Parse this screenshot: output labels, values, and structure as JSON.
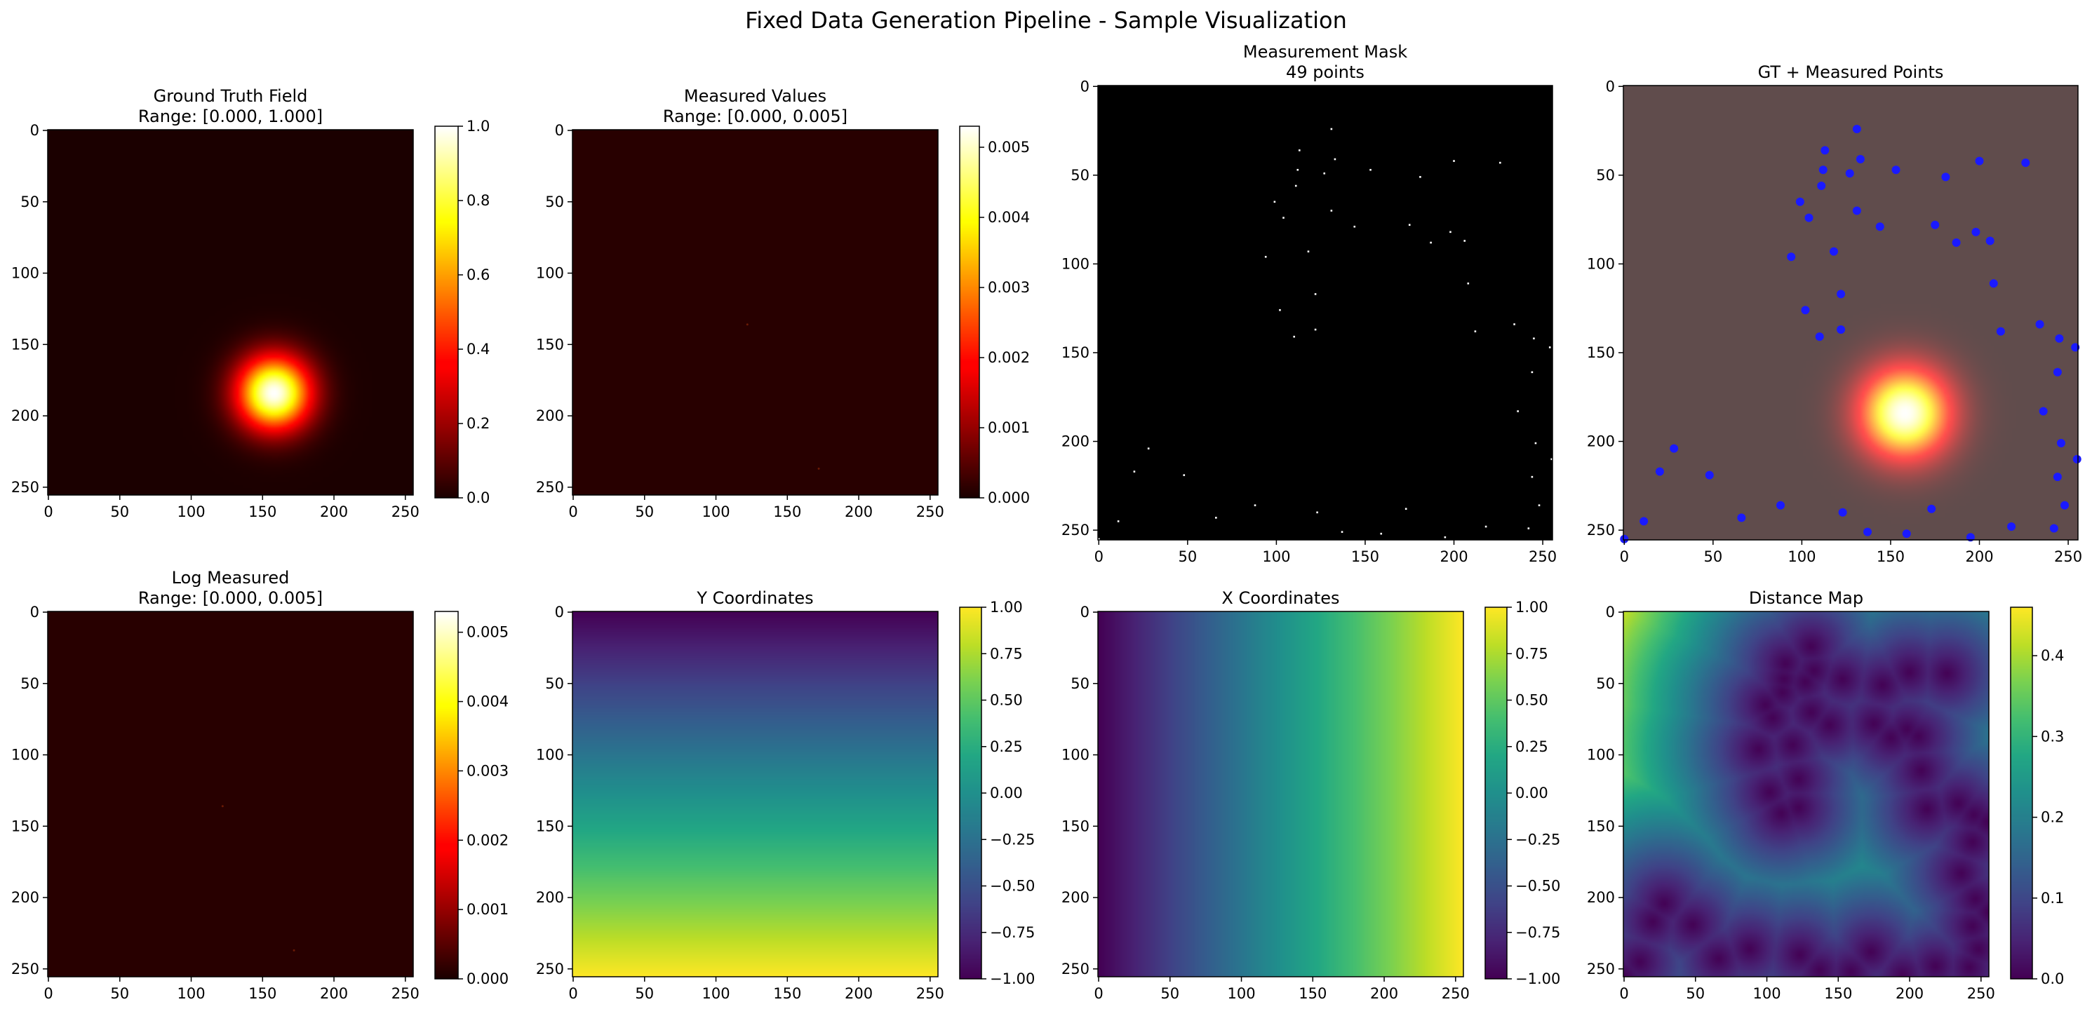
{
  "figure": {
    "title": "Fixed Data Generation Pipeline - Sample Visualization"
  },
  "chart_data": [
    {
      "type": "heatmap",
      "id": "gt",
      "title_lines": [
        "Ground Truth Field",
        "Range: [0.000, 1.000]"
      ],
      "colormap": "hot",
      "image_extent": [
        0,
        255
      ],
      "xticks": [
        0,
        50,
        100,
        150,
        200,
        250
      ],
      "yticks": [
        0,
        50,
        100,
        150,
        200,
        250
      ],
      "field": {
        "kind": "gaussian",
        "center": [
          158,
          184
        ],
        "sigma": 18,
        "amplitude": 1.0
      },
      "colorbar": {
        "range": [
          0,
          1.0
        ],
        "ticks": [
          "0.0",
          "0.2",
          "0.4",
          "0.6",
          "0.8",
          "1.0"
        ],
        "values": [
          0,
          0.2,
          0.4,
          0.6,
          0.8,
          1.0
        ]
      }
    },
    {
      "type": "heatmap",
      "id": "meas",
      "title_lines": [
        "Measured Values",
        "Range: [0.000, 0.005]"
      ],
      "colormap": "hot",
      "image_extent": [
        0,
        255
      ],
      "xticks": [
        0,
        50,
        100,
        150,
        200,
        250
      ],
      "yticks": [
        0,
        50,
        100,
        150,
        200,
        250
      ],
      "field": {
        "kind": "points",
        "background": 0.0,
        "points": [
          [
            122,
            136,
            0.0001
          ],
          [
            172,
            237,
            0.0001
          ]
        ]
      },
      "colorbar": {
        "range": [
          0,
          0.0053
        ],
        "ticks": [
          "0.000",
          "0.001",
          "0.002",
          "0.003",
          "0.004",
          "0.005"
        ],
        "values": [
          0,
          0.001,
          0.002,
          0.003,
          0.004,
          0.005
        ]
      }
    },
    {
      "type": "heatmap",
      "id": "mask",
      "title_lines": [
        "Measurement Mask",
        "49 points"
      ],
      "colormap": "gray",
      "image_extent": [
        0,
        255
      ],
      "xticks": [
        0,
        50,
        100,
        150,
        200,
        250
      ],
      "yticks": [
        0,
        50,
        100,
        150,
        200,
        250
      ],
      "points": [
        [
          131,
          24
        ],
        [
          113,
          36
        ],
        [
          133,
          41
        ],
        [
          226,
          43
        ],
        [
          200,
          42
        ],
        [
          112,
          47
        ],
        [
          153,
          47
        ],
        [
          127,
          49
        ],
        [
          181,
          51
        ],
        [
          111,
          56
        ],
        [
          99,
          65
        ],
        [
          131,
          70
        ],
        [
          104,
          74
        ],
        [
          175,
          78
        ],
        [
          144,
          79
        ],
        [
          198,
          82
        ],
        [
          206,
          87
        ],
        [
          187,
          88
        ],
        [
          118,
          93
        ],
        [
          94,
          96
        ],
        [
          208,
          111
        ],
        [
          122,
          117
        ],
        [
          102,
          126
        ],
        [
          234,
          134
        ],
        [
          122,
          137
        ],
        [
          212,
          138
        ],
        [
          110,
          141
        ],
        [
          245,
          142
        ],
        [
          254,
          147
        ],
        [
          244,
          161
        ],
        [
          236,
          183
        ],
        [
          246,
          201
        ],
        [
          255,
          210
        ],
        [
          28,
          204
        ],
        [
          244,
          220
        ],
        [
          20,
          217
        ],
        [
          48,
          219
        ],
        [
          248,
          236
        ],
        [
          88,
          236
        ],
        [
          173,
          238
        ],
        [
          123,
          240
        ],
        [
          66,
          243
        ],
        [
          11,
          245
        ],
        [
          218,
          248
        ],
        [
          242,
          249
        ],
        [
          137,
          251
        ],
        [
          159,
          252
        ],
        [
          195,
          254
        ],
        [
          0,
          255
        ]
      ]
    },
    {
      "type": "heatmap",
      "id": "overlay",
      "title_lines": [
        "GT + Measured Points"
      ],
      "colormap": "hot",
      "image_extent": [
        0,
        255
      ],
      "xticks": [
        0,
        50,
        100,
        150,
        200,
        250
      ],
      "yticks": [
        0,
        50,
        100,
        150,
        200,
        250
      ],
      "point_color": "#1a1aff"
    },
    {
      "type": "heatmap",
      "id": "log",
      "title_lines": [
        "Log Measured",
        "Range: [0.000, 0.005]"
      ],
      "colormap": "hot",
      "image_extent": [
        0,
        255
      ],
      "xticks": [
        0,
        50,
        100,
        150,
        200,
        250
      ],
      "yticks": [
        0,
        50,
        100,
        150,
        200,
        250
      ],
      "field": {
        "kind": "points",
        "background": 0.0,
        "points": [
          [
            122,
            136,
            0.0001
          ],
          [
            172,
            237,
            0.0001
          ]
        ]
      },
      "colorbar": {
        "range": [
          0,
          0.0053
        ],
        "ticks": [
          "0.000",
          "0.001",
          "0.002",
          "0.003",
          "0.004",
          "0.005"
        ],
        "values": [
          0,
          0.001,
          0.002,
          0.003,
          0.004,
          0.005
        ]
      }
    },
    {
      "type": "heatmap",
      "id": "ycoord",
      "title_lines": [
        "Y Coordinates"
      ],
      "colormap": "viridis",
      "image_extent": [
        0,
        255
      ],
      "xticks": [
        0,
        50,
        100,
        150,
        200,
        250
      ],
      "yticks": [
        0,
        50,
        100,
        150,
        200,
        250
      ],
      "field": {
        "kind": "linear_y",
        "from": -1.0,
        "to": 1.0
      },
      "colorbar": {
        "range": [
          -1.0,
          1.0
        ],
        "ticks": [
          "−1.00",
          "−0.75",
          "−0.50",
          "−0.25",
          "0.00",
          "0.25",
          "0.50",
          "0.75",
          "1.00"
        ],
        "values": [
          -1,
          -0.75,
          -0.5,
          -0.25,
          0,
          0.25,
          0.5,
          0.75,
          1
        ]
      }
    },
    {
      "type": "heatmap",
      "id": "xcoord",
      "title_lines": [
        "X Coordinates"
      ],
      "colormap": "viridis",
      "image_extent": [
        0,
        255
      ],
      "xticks": [
        0,
        50,
        100,
        150,
        200,
        250
      ],
      "yticks": [
        0,
        50,
        100,
        150,
        200,
        250
      ],
      "field": {
        "kind": "linear_x",
        "from": -1.0,
        "to": 1.0
      },
      "colorbar": {
        "range": [
          -1.0,
          1.0
        ],
        "ticks": [
          "−1.00",
          "−0.75",
          "−0.50",
          "−0.25",
          "0.00",
          "0.25",
          "0.50",
          "0.75",
          "1.00"
        ],
        "values": [
          -1,
          -0.75,
          -0.5,
          -0.25,
          0,
          0.25,
          0.5,
          0.75,
          1
        ]
      }
    },
    {
      "type": "heatmap",
      "id": "dist",
      "title_lines": [
        "Distance Map"
      ],
      "colormap": "viridis",
      "image_extent": [
        0,
        255
      ],
      "xticks": [
        0,
        50,
        100,
        150,
        200,
        250
      ],
      "yticks": [
        0,
        50,
        100,
        150,
        200,
        250
      ],
      "field": {
        "kind": "distance",
        "scale": 0.00353
      },
      "colorbar": {
        "range": [
          0,
          0.46
        ],
        "ticks": [
          "0.0",
          "0.1",
          "0.2",
          "0.3",
          "0.4"
        ],
        "values": [
          0,
          0.1,
          0.2,
          0.3,
          0.4
        ]
      }
    }
  ]
}
